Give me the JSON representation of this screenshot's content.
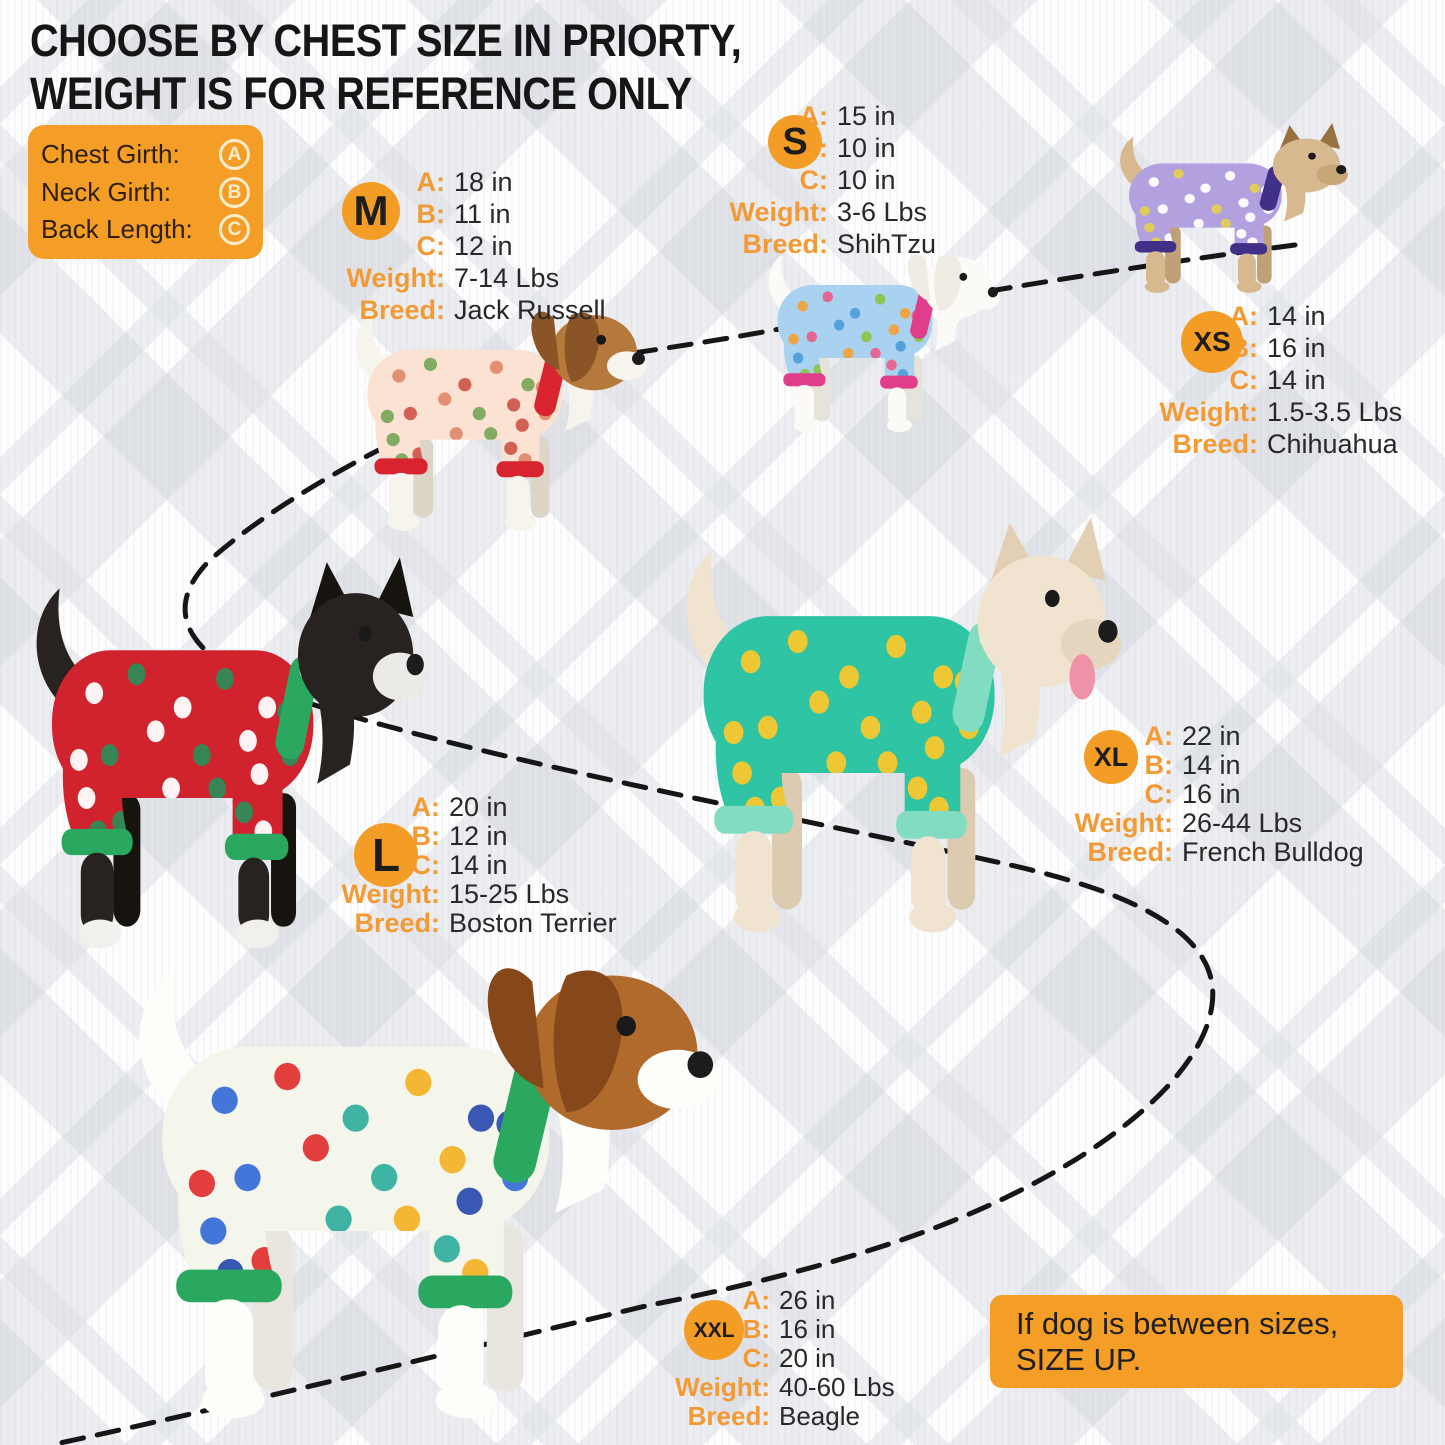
{
  "title": {
    "line1": "CHOOSE BY CHEST SIZE IN PRIORTY,",
    "line2": "WEIGHT IS FOR REFERENCE ONLY"
  },
  "legend": {
    "items": [
      {
        "label": "Chest Girth:",
        "symbol": "A"
      },
      {
        "label": "Neck Girth:",
        "symbol": "B"
      },
      {
        "label": "Back Length:",
        "symbol": "C"
      }
    ]
  },
  "labels": {
    "a": "A:",
    "b": "B:",
    "c": "C:",
    "weight": "Weight:",
    "breed": "Breed:"
  },
  "sizes": [
    {
      "code": "M",
      "a": "18 in",
      "b": "11 in",
      "c": "12 in",
      "weight": "7-14 Lbs",
      "breed": "Jack Russell"
    },
    {
      "code": "S",
      "a": "15 in",
      "b": "10 in",
      "c": "10 in",
      "weight": "3-6 Lbs",
      "breed": "ShihTzu"
    },
    {
      "code": "XS",
      "a": "14 in",
      "b": "16 in",
      "c": "14 in",
      "weight": "1.5-3.5 Lbs",
      "breed": "Chihuahua"
    },
    {
      "code": "L",
      "a": "20 in",
      "b": "12 in",
      "c": "14 in",
      "weight": "15-25 Lbs",
      "breed": "Boston Terrier"
    },
    {
      "code": "XL",
      "a": "22 in",
      "b": "14 in",
      "c": "16 in",
      "weight": "26-44 Lbs",
      "breed": "French Bulldog"
    },
    {
      "code": "XXL",
      "a": "26 in",
      "b": "16 in",
      "c": "20 in",
      "weight": "40-60 Lbs",
      "breed": "Beagle"
    }
  ],
  "note": {
    "line1": "If dog is between sizes,",
    "line2": "SIZE UP."
  },
  "colors": {
    "accent_orange": "#F59E27",
    "badge_orange": "#F49D26",
    "label_orange": "#F29B36",
    "text_dark": "#1d1d1d",
    "dash_black": "#161616"
  },
  "dogs": [
    {
      "code": "m",
      "breed": "Jack Russell",
      "ears": "floppy",
      "tongue": false,
      "fur": "#f7f4ee",
      "furShade": "#ddd5c8",
      "head": "#b5793c",
      "ear": "#8a5426",
      "muzzle": "#f7f4ee",
      "paw": "#f7f4ee",
      "pajama": "#fbe2d2",
      "trim": "#d8242f",
      "pattern": [
        "#e08a6e",
        "#7aa95c",
        "#cf5a4e"
      ]
    },
    {
      "code": "s",
      "breed": "ShihTzu",
      "ears": "floppy",
      "tongue": false,
      "fur": "#fbfaf6",
      "furShade": "#e6e3da",
      "head": "#fbfaf6",
      "ear": "#efece4",
      "muzzle": "#fbfaf6",
      "paw": "#fbfaf6",
      "pajama": "#a9d2f0",
      "trim": "#e03e8c",
      "pattern": [
        "#f2a13c",
        "#e8618c",
        "#4f9fd8",
        "#8bc34a"
      ]
    },
    {
      "code": "xs",
      "breed": "Chihuahua",
      "ears": "pointy",
      "tongue": false,
      "fur": "#d8b88e",
      "furShade": "#c0a077",
      "head": "#d8b88e",
      "ear": "#97713f",
      "muzzle": "#c9a678",
      "paw": "#d8b88e",
      "pajama": "#b3a0df",
      "trim": "#413088",
      "pattern": [
        "#ffffff",
        "#e3cf54",
        "#ffffff"
      ]
    },
    {
      "code": "l",
      "breed": "Boston Terrier",
      "ears": "pointy",
      "tongue": false,
      "fur": "#282320",
      "furShade": "#17130f",
      "head": "#282320",
      "ear": "#17130f",
      "muzzle": "#eceae6",
      "paw": "#f2f0ec",
      "pajama": "#d0232e",
      "trim": "#2ba85f",
      "pattern": [
        "#ffffff",
        "#2e8b57"
      ]
    },
    {
      "code": "xl",
      "breed": "French Bulldog",
      "ears": "pointy",
      "tongue": true,
      "fur": "#f0e4d1",
      "furShade": "#dccbb0",
      "head": "#f0e4d1",
      "ear": "#e2cfb4",
      "muzzle": "#e7d6bf",
      "paw": "#f0e4d1",
      "pajama": "#2fc4a4",
      "trim": "#82dcc2",
      "pattern": [
        "#f8c82e"
      ]
    },
    {
      "code": "xxl",
      "breed": "Beagle",
      "ears": "floppy",
      "tongue": false,
      "fur": "#fdfdfa",
      "furShade": "#e8e6df",
      "head": "#b06a2c",
      "ear": "#86481b",
      "muzzle": "#fdfdfa",
      "paw": "#fdfdfa",
      "pajama": "#f4f6ec",
      "trim": "#2ba85f",
      "pattern": [
        "#3a6fd8",
        "#e03434",
        "#35b0a0",
        "#f2b32a",
        "#2e4fb0"
      ]
    }
  ]
}
